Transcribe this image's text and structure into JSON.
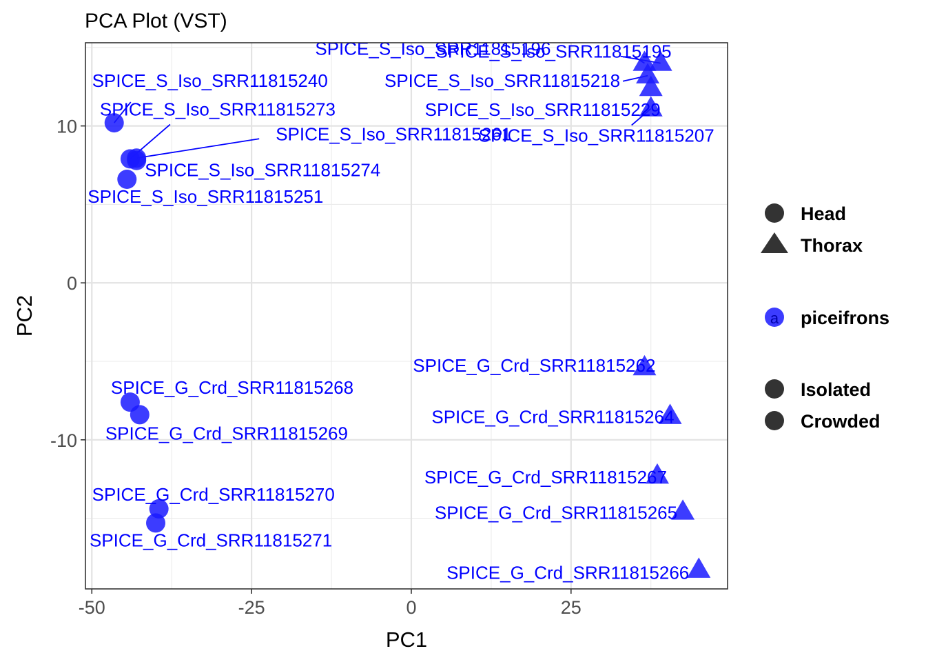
{
  "chart_data": {
    "type": "scatter",
    "title": "PCA Plot (VST)",
    "xlabel": "PC1",
    "ylabel": "PC2",
    "xlim": [
      -51,
      49.5
    ],
    "ylim": [
      -19.5,
      15.3
    ],
    "x_ticks": [
      -50,
      -25,
      0,
      25
    ],
    "x_tick_labels": [
      "-50",
      "-25",
      "0",
      "25"
    ],
    "y_ticks": [
      -10,
      0,
      10
    ],
    "y_tick_labels": [
      "-10",
      "0",
      "10"
    ],
    "grid": true,
    "point_color": "#1a1aff",
    "label_color": "#0000ff",
    "points": [
      {
        "name": "SPICE_S_Iso_SRR11815196",
        "x": 36.5,
        "y": 14.0,
        "shape": "triangle"
      },
      {
        "name": "SPICE_S_Iso_SRR11815195",
        "x": 39.0,
        "y": 14.0,
        "shape": "triangle"
      },
      {
        "name": "SPICE_S_Iso_SRR11815218",
        "x": 37.0,
        "y": 13.2,
        "shape": "triangle"
      },
      {
        "name": "SPICE_S_Iso_SRR11815229",
        "x": 37.5,
        "y": 12.4,
        "shape": "triangle"
      },
      {
        "name": "SPICE_S_Iso_SRR11815207",
        "x": 37.5,
        "y": 11.1,
        "shape": "triangle"
      },
      {
        "name": "SPICE_S_Iso_SRR11815240",
        "x": -46.5,
        "y": 10.2,
        "shape": "circle"
      },
      {
        "name": "SPICE_S_Iso_SRR11815273",
        "x": -44.0,
        "y": 7.9,
        "shape": "circle"
      },
      {
        "name": "SPICE_S_Iso_SRR11815261",
        "x": -43.0,
        "y": 7.95,
        "shape": "circle"
      },
      {
        "name": "SPICE_S_Iso_SRR11815274",
        "x": -43.0,
        "y": 7.8,
        "shape": "circle"
      },
      {
        "name": "SPICE_S_Iso_SRR11815251",
        "x": -44.5,
        "y": 6.6,
        "shape": "circle"
      },
      {
        "name": "SPICE_G_Crd_SRR11815262",
        "x": 36.5,
        "y": -5.4,
        "shape": "triangle"
      },
      {
        "name": "SPICE_G_Crd_SRR11815268",
        "x": -44.0,
        "y": -7.6,
        "shape": "circle"
      },
      {
        "name": "SPICE_G_Crd_SRR11815269",
        "x": -42.5,
        "y": -8.4,
        "shape": "circle"
      },
      {
        "name": "SPICE_G_Crd_SRR11815264",
        "x": 40.5,
        "y": -8.5,
        "shape": "triangle"
      },
      {
        "name": "SPICE_G_Crd_SRR11815267",
        "x": 38.5,
        "y": -12.3,
        "shape": "triangle"
      },
      {
        "name": "SPICE_G_Crd_SRR11815270",
        "x": -39.5,
        "y": -14.4,
        "shape": "circle"
      },
      {
        "name": "SPICE_G_Crd_SRR11815271",
        "x": -40.0,
        "y": -15.3,
        "shape": "circle"
      },
      {
        "name": "SPICE_G_Crd_SRR11815265",
        "x": 42.5,
        "y": -14.6,
        "shape": "triangle"
      },
      {
        "name": "SPICE_G_Crd_SRR11815266",
        "x": 45.0,
        "y": -18.3,
        "shape": "triangle"
      }
    ],
    "legend": {
      "position": "right",
      "shape_entries": [
        {
          "label": "Head",
          "shape": "circle"
        },
        {
          "label": "Thorax",
          "shape": "triangle"
        }
      ],
      "color_entries": [
        {
          "label": "piceifrons",
          "key_glyph": "a"
        }
      ],
      "group_entries": [
        {
          "label": "Isolated",
          "shape": "circle"
        },
        {
          "label": "Crowded",
          "shape": "circle"
        }
      ]
    }
  }
}
